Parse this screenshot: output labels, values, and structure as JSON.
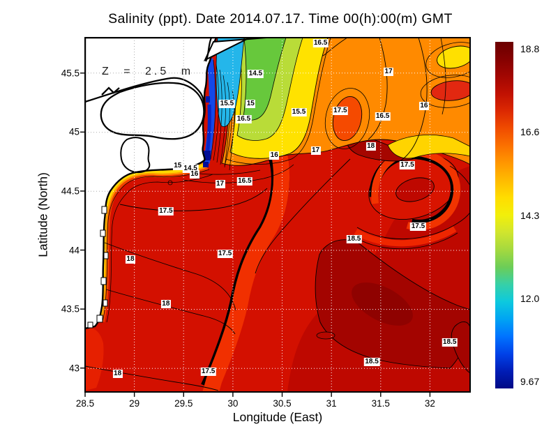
{
  "title": "Salinity (ppt). Date 2014.07.17. Time 00(h):00(m) GMT",
  "annotation": "Z = 2.5 m",
  "axes": {
    "x": {
      "label": "Longitude (East)",
      "ticks": [
        "28.5",
        "29",
        "29.5",
        "30",
        "30.5",
        "31",
        "31.5",
        "32"
      ]
    },
    "y": {
      "label": "Latitude (North)",
      "ticks": [
        "45.5",
        "45",
        "44.5",
        "44",
        "43.5",
        "43"
      ]
    }
  },
  "colorbar": {
    "labels": [
      "18.8",
      "16.6",
      "14.3",
      "12.0",
      "9.67"
    ],
    "min": 9.67,
    "max": 18.8,
    "gradient_top_to_bottom": [
      "#6B0000",
      "#850101",
      "#A30702",
      "#C11102",
      "#DC2902",
      "#F04C00",
      "#FB7100",
      "#FF9700",
      "#FFBB00",
      "#FFDD00",
      "#F2EF0A",
      "#D0E52E",
      "#A4D93F",
      "#6CCD57",
      "#36D0A8",
      "#0DC9DE",
      "#00A4F3",
      "#0073FF",
      "#0042E8",
      "#001DB6",
      "#000A85"
    ]
  },
  "chart_data": {
    "type": "heatmap",
    "variable": "Salinity (ppt)",
    "date": "2014.07.17",
    "time": "00(h):00(m) GMT",
    "depth": "Z = 2.5 m",
    "title": "Salinity (ppt). Date 2014.07.17. Time 00(h):00(m) GMT",
    "xlabel": "Longitude (East)",
    "ylabel": "Latitude (North)",
    "xlim": [
      28.5,
      32.41
    ],
    "ylim": [
      42.8,
      45.8
    ],
    "x_ticks": [
      28.5,
      29,
      29.5,
      30,
      30.5,
      31,
      31.5,
      32
    ],
    "y_ticks": [
      45.5,
      45,
      44.5,
      44,
      43.5,
      43
    ],
    "grid": true,
    "legend_position": "right",
    "colorbar_range": [
      9.67,
      18.8
    ],
    "colorbar_ticks": [
      18.8,
      16.6,
      14.3,
      12.0,
      9.67
    ],
    "contour_labels_ppt": [
      {
        "v": "16.5",
        "lon": 30.89,
        "lat": 45.75
      },
      {
        "v": "17",
        "lon": 31.58,
        "lat": 45.51
      },
      {
        "v": "14.5",
        "lon": 30.23,
        "lat": 45.49
      },
      {
        "v": "15.5",
        "lon": 29.94,
        "lat": 45.24
      },
      {
        "v": "15",
        "lon": 30.18,
        "lat": 45.24
      },
      {
        "v": "16.5",
        "lon": 30.11,
        "lat": 45.11
      },
      {
        "v": "15.5",
        "lon": 30.67,
        "lat": 45.17
      },
      {
        "v": "17.5",
        "lon": 31.09,
        "lat": 45.18
      },
      {
        "v": "16.5",
        "lon": 31.52,
        "lat": 45.13
      },
      {
        "v": "16",
        "lon": 31.94,
        "lat": 45.22
      },
      {
        "v": "15",
        "lon": 29.44,
        "lat": 44.71
      },
      {
        "v": "14.5",
        "lon": 29.57,
        "lat": 44.69
      },
      {
        "v": "16",
        "lon": 29.61,
        "lat": 44.64
      },
      {
        "v": "17",
        "lon": 29.87,
        "lat": 44.56
      },
      {
        "v": "16.5",
        "lon": 30.12,
        "lat": 44.58
      },
      {
        "v": "16",
        "lon": 30.42,
        "lat": 44.8
      },
      {
        "v": "17",
        "lon": 30.84,
        "lat": 44.84
      },
      {
        "v": "18",
        "lon": 31.4,
        "lat": 44.88
      },
      {
        "v": "17.5",
        "lon": 31.77,
        "lat": 44.72
      },
      {
        "v": "17.5",
        "lon": 29.32,
        "lat": 44.33
      },
      {
        "v": "17.5",
        "lon": 29.92,
        "lat": 43.97
      },
      {
        "v": "18",
        "lon": 28.96,
        "lat": 43.92
      },
      {
        "v": "17.5",
        "lon": 31.88,
        "lat": 44.2
      },
      {
        "v": "18.5",
        "lon": 31.23,
        "lat": 44.09
      },
      {
        "v": "18",
        "lon": 29.32,
        "lat": 43.54
      },
      {
        "v": "18.5",
        "lon": 32.2,
        "lat": 43.22
      },
      {
        "v": "18.5",
        "lon": 31.41,
        "lat": 43.05
      },
      {
        "v": "18",
        "lon": 28.83,
        "lat": 42.95
      },
      {
        "v": "17.5",
        "lon": 29.75,
        "lat": 42.97
      }
    ]
  }
}
